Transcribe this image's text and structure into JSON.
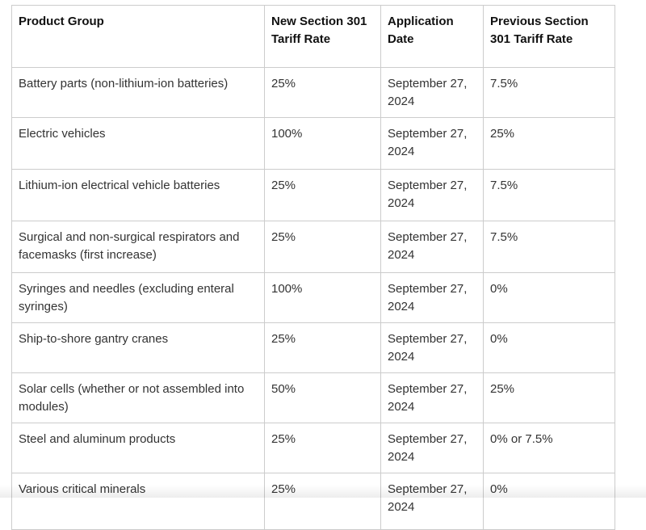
{
  "colors": {
    "background": "#ffffff",
    "table_border": "#cccccc",
    "header_text": "#111111",
    "body_text": "#333333"
  },
  "table": {
    "columns": [
      "Product Group",
      "New Section 301 Tariff Rate",
      "Application Date",
      "Previous Section 301 Tariff Rate"
    ],
    "rows": [
      {
        "product": "Battery parts (non-lithium-ion batteries)",
        "new_rate": "25%",
        "application_date": "September 27, 2024",
        "previous_rate": "7.5%"
      },
      {
        "product": "Electric vehicles",
        "new_rate": "100%",
        "application_date": "September 27, 2024",
        "previous_rate": "25%"
      },
      {
        "product": "Lithium-ion electrical vehicle batteries",
        "new_rate": "25%",
        "application_date": "September 27, 2024",
        "previous_rate": "7.5%"
      },
      {
        "product": "Surgical and non-surgical respirators and facemasks (first increase)",
        "new_rate": "25%",
        "application_date": "September 27, 2024",
        "previous_rate": "7.5%"
      },
      {
        "product": "Syringes and needles (excluding enteral syringes)",
        "new_rate": "100%",
        "application_date": "September 27, 2024",
        "previous_rate": "0%"
      },
      {
        "product": "Ship-to-shore gantry cranes",
        "new_rate": "25%",
        "application_date": "September 27, 2024",
        "previous_rate": "0%"
      },
      {
        "product": "Solar cells (whether or not assembled into modules)",
        "new_rate": "50%",
        "application_date": "September 27, 2024",
        "previous_rate": "25%"
      },
      {
        "product": "Steel and aluminum products",
        "new_rate": "25%",
        "application_date": "September 27, 2024",
        "previous_rate": "0% or 7.5%"
      },
      {
        "product": "Various critical minerals",
        "new_rate": "25%",
        "application_date": "September 27, 2024",
        "previous_rate": "0%"
      }
    ]
  }
}
